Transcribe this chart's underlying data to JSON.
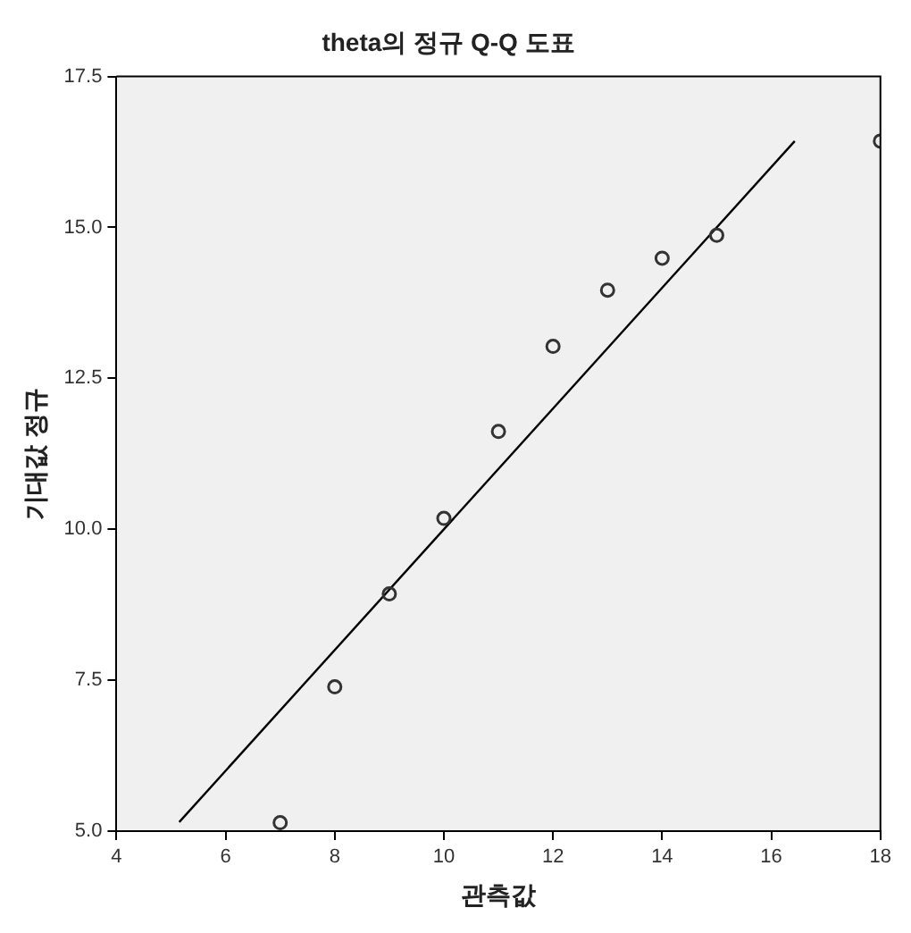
{
  "chart_data": {
    "type": "scatter",
    "title": "theta의 정규 Q-Q 도표",
    "xlabel": "관측값",
    "ylabel": "기대값 정규",
    "xlim": [
      4,
      18
    ],
    "xticks": [
      4,
      6,
      8,
      10,
      12,
      14,
      16,
      18
    ],
    "ylim": [
      5,
      17.5
    ],
    "yticks": [
      {
        "value": 5,
        "label": "5.0"
      },
      {
        "value": 7.5,
        "label": "7.5"
      },
      {
        "value": 10,
        "label": "10.0"
      },
      {
        "value": 12.5,
        "label": "12.5"
      },
      {
        "value": 15,
        "label": "15.0"
      },
      {
        "value": 17.5,
        "label": "17.5"
      }
    ],
    "grid": false,
    "legend": false,
    "series": [
      {
        "type": "scatter",
        "color": "#333333",
        "marker": "circle",
        "x": [
          7,
          8,
          9,
          10,
          11,
          12,
          13,
          14,
          15,
          18
        ],
        "values": [
          5.14,
          7.39,
          8.93,
          10.18,
          11.62,
          13.03,
          13.96,
          14.49,
          14.87,
          16.43
        ]
      },
      {
        "type": "line",
        "color": "#000000",
        "line_style": "solid",
        "marker": "none",
        "x": [
          5.15,
          16.43
        ],
        "values": [
          5.15,
          16.43
        ]
      }
    ]
  }
}
